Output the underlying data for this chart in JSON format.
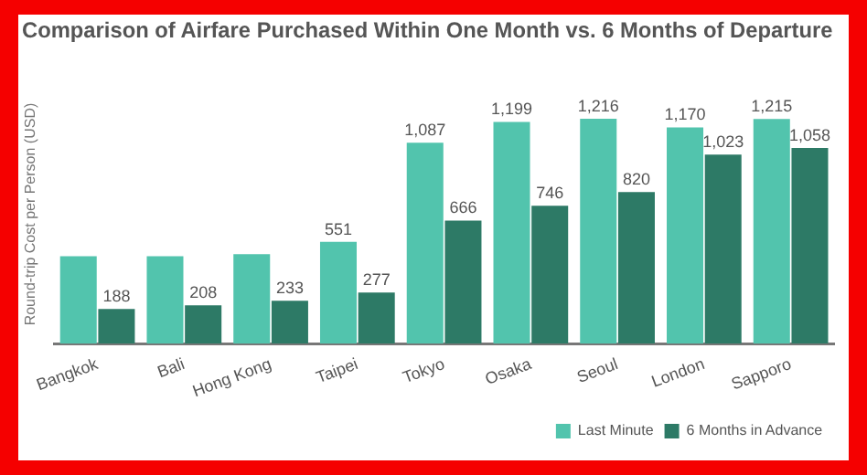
{
  "chart_data": {
    "type": "bar",
    "title": "Comparison of Airfare Purchased Within One Month vs. 6 Months of Departure",
    "ylabel": "Round-trip Cost per Person (USD)",
    "categories": [
      "Bangkok",
      "Bali",
      "Hong Kong",
      "Taipei",
      "Tokyo",
      "Osaka",
      "Seoul",
      "London",
      "Sapporo"
    ],
    "series": [
      {
        "name": "Last Minute",
        "color": "#52c4ad",
        "values": [
          473,
          473,
          484,
          551,
          1087,
          1199,
          1216,
          1170,
          1215
        ],
        "value_labels": [
          null,
          null,
          null,
          "551",
          "1,087",
          "1,199",
          "1,216",
          "1,170",
          "1,215"
        ]
      },
      {
        "name": "6 Months in Advance",
        "color": "#2d7a66",
        "values": [
          188,
          208,
          233,
          277,
          666,
          746,
          820,
          1023,
          1058
        ],
        "value_labels": [
          "188",
          "208",
          "233",
          "277",
          "666",
          "746",
          "820",
          "1,023",
          "1,058"
        ]
      }
    ],
    "legend": "bottom right",
    "grid": false
  }
}
